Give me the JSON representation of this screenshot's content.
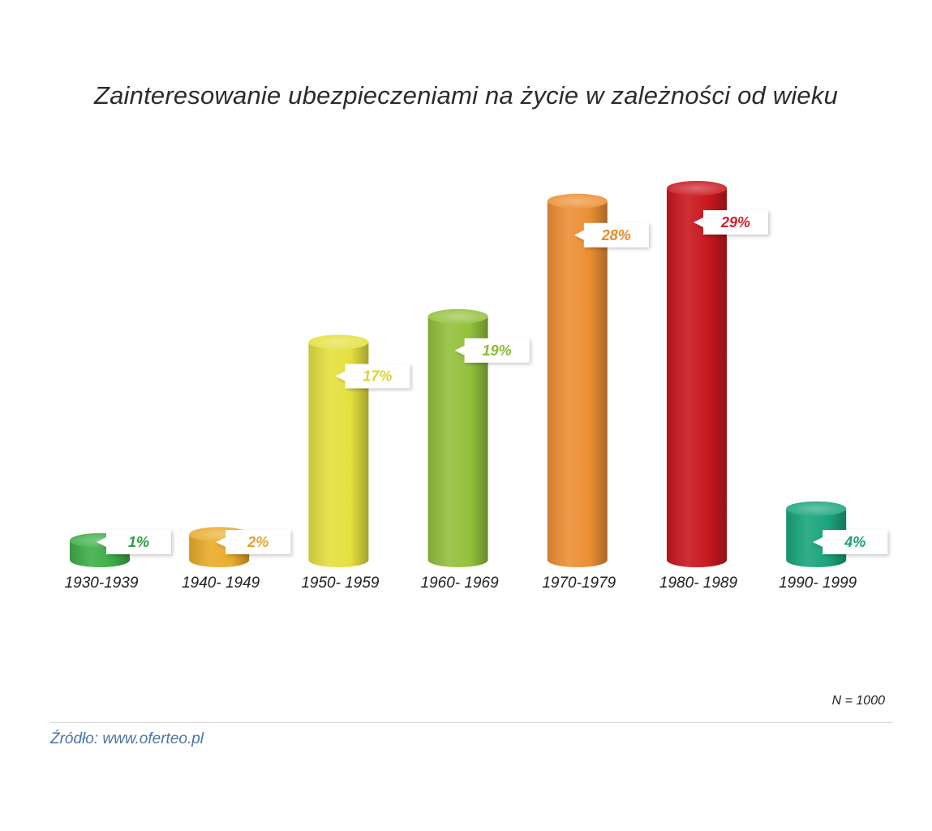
{
  "chart_data": {
    "type": "bar",
    "title": "Zainteresowanie ubezpieczeniami na życie w zależności od wieku",
    "categories": [
      "1930-1939",
      "1940- 1949",
      "1950- 1959",
      "1960- 1969",
      "1970-1979",
      "1980- 1989",
      "1990- 1999"
    ],
    "values": [
      1,
      2,
      17,
      19,
      28,
      29,
      4
    ],
    "value_labels": [
      "1%",
      "2%",
      "17%",
      "19%",
      "28%",
      "29%",
      "4%"
    ],
    "unit": "%",
    "colors": [
      "#3fae49",
      "#eaac2a",
      "#e4e040",
      "#93c13d",
      "#ec8f35",
      "#c8181f",
      "#1aa57c"
    ],
    "label_colors": [
      "#2f9e3e",
      "#e6a224",
      "#d8d62e",
      "#8cbc34",
      "#e9892b",
      "#d3202a",
      "#1a9e78"
    ],
    "ylim": [
      0,
      29
    ],
    "grid": false,
    "legend": "none"
  },
  "sample_note": "N = 1000",
  "source_note": "Źródło: www.oferteo.pl"
}
